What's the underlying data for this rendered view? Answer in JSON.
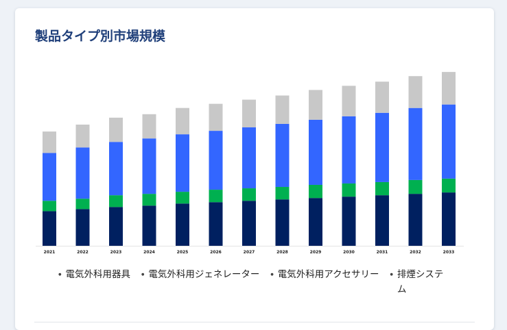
{
  "title": "製品タイプ別市場規模",
  "chart_data": {
    "type": "bar",
    "stacked": true,
    "title": "製品タイプ別市場規模",
    "categories": [
      "2021",
      "2022",
      "2023",
      "2024",
      "2025",
      "2026",
      "2027",
      "2028",
      "2029",
      "2030",
      "2031",
      "2032",
      "2033"
    ],
    "series": [
      {
        "name": "電気外科用器具",
        "color": "#002060",
        "values": [
          50,
          53,
          56,
          58,
          61,
          63,
          65,
          67,
          69,
          71,
          73,
          75,
          77
        ]
      },
      {
        "name": "電気外科用ジェネレーター",
        "color": "#00b050",
        "values": [
          15,
          15,
          17,
          17,
          17,
          18,
          18,
          18,
          19,
          19,
          19,
          20,
          20
        ]
      },
      {
        "name": "電気外科用アクセサリー",
        "color": "#3366ff",
        "values": [
          69,
          74,
          77,
          80,
          83,
          85,
          88,
          91,
          94,
          97,
          100,
          104,
          107
        ]
      },
      {
        "name": "排煙システム",
        "color": "#c8c8c8",
        "values": [
          31,
          33,
          35,
          35,
          38,
          39,
          40,
          41,
          43,
          44,
          45,
          46,
          47
        ]
      }
    ],
    "ylim": [
      0,
      260
    ],
    "grid": false,
    "legend": "bottom"
  },
  "legend": [
    {
      "label": "電気外科用器具"
    },
    {
      "label": "電気外科用ジェネレーター"
    },
    {
      "label": "電気外科用アクセサリー"
    },
    {
      "label": "排煙システム"
    }
  ]
}
